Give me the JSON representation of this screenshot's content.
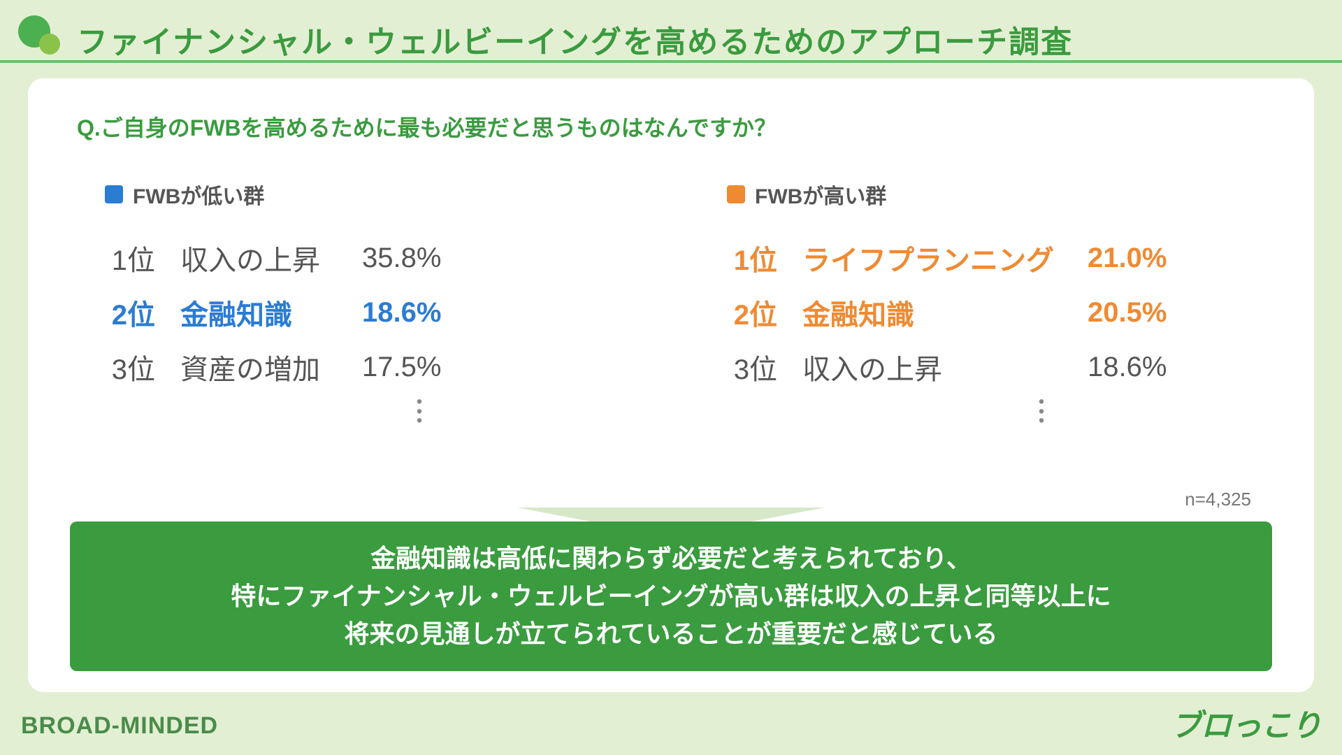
{
  "colors": {
    "page_bg": "#e3efd3",
    "card_bg": "#ffffff",
    "brand_green": "#3a9b3f",
    "brand_green_light": "#8bc34a",
    "underline": "#6fbf6f",
    "text_gray": "#555555",
    "note_gray": "#777777",
    "blue": "#2b7cd3",
    "orange": "#ef8a33",
    "arrow_fill": "#d6e8c8",
    "conclusion_bg": "#3a9b3f",
    "conclusion_text": "#ffffff"
  },
  "title": "ファイナンシャル・ウェルビーイングを高めるためのアプローチ調査",
  "question": "Q.ご自身のFWBを高めるために最も必要だと思うものはなんですか？",
  "columns": {
    "low": {
      "swatch_color": "#2b7cd3",
      "header": "FWBが低い群",
      "rows": [
        {
          "rank": "1位",
          "label": "収入の上昇",
          "value": "35.8%",
          "highlight": ""
        },
        {
          "rank": "2位",
          "label": "金融知識",
          "value": "18.6%",
          "highlight": "blue"
        },
        {
          "rank": "3位",
          "label": "資産の増加",
          "value": "17.5%",
          "highlight": ""
        }
      ]
    },
    "high": {
      "swatch_color": "#ef8a33",
      "header": "FWBが高い群",
      "rows": [
        {
          "rank": "1位",
          "label": "ライフプランニング",
          "value": "21.0%",
          "highlight": "orange"
        },
        {
          "rank": "2位",
          "label": "金融知識",
          "value": "20.5%",
          "highlight": "orange"
        },
        {
          "rank": "3位",
          "label": "収入の上昇",
          "value": "18.6%",
          "highlight": ""
        }
      ]
    }
  },
  "sample_note": "n=4,325",
  "conclusion": {
    "line1": "金融知識は高低に関わらず必要だと考えられており、",
    "line2": "特にファイナンシャル・ウェルビーイングが高い群は収入の上昇と同等以上に",
    "line3": "将来の見通しが立てられていることが重要だと感じている"
  },
  "footer": {
    "left": "BROAD-MINDED",
    "right": "ブロっこり"
  }
}
